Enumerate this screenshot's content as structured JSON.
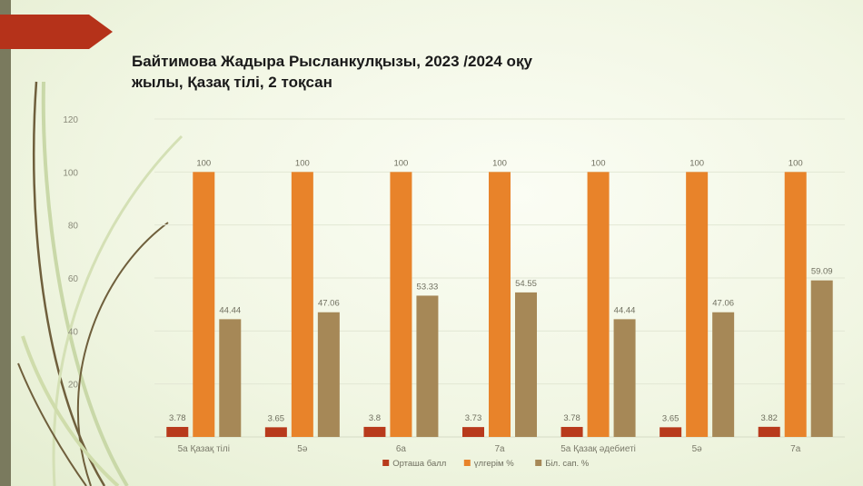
{
  "title_lines": [
    "Байтимова Жадыра Рысланкулқызы, 2023 /2024 оқу",
    "жылы, Қазақ тілі, 2 тоқсан"
  ],
  "chart_data": {
    "type": "bar",
    "title": "Байтимова Жадыра Рысланкулқызы, 2023 /2024 оқу жылы, Қазақ тілі, 2 тоқсан",
    "categories": [
      "5а Қазақ тілі",
      "5ә",
      "6а",
      "7а",
      "5а Қазақ әдебиеті",
      "5ә",
      "7а"
    ],
    "series": [
      {
        "name": "Орташа балл",
        "color": "#b83a1c",
        "values": [
          3.78,
          3.65,
          3.8,
          3.73,
          3.78,
          3.65,
          3.82
        ]
      },
      {
        "name": "үлгерім %",
        "color": "#e8832a",
        "values": [
          100,
          100,
          100,
          100,
          100,
          100,
          100
        ]
      },
      {
        "name": "Біл. сап. %",
        "color": "#a68857",
        "values": [
          44.44,
          47.06,
          53.33,
          54.55,
          44.44,
          47.06,
          59.09
        ]
      }
    ],
    "ylim": [
      0,
      120
    ],
    "yticks": [
      20,
      40,
      60,
      80,
      100,
      120
    ],
    "grid": true,
    "legend_position": "bottom"
  }
}
